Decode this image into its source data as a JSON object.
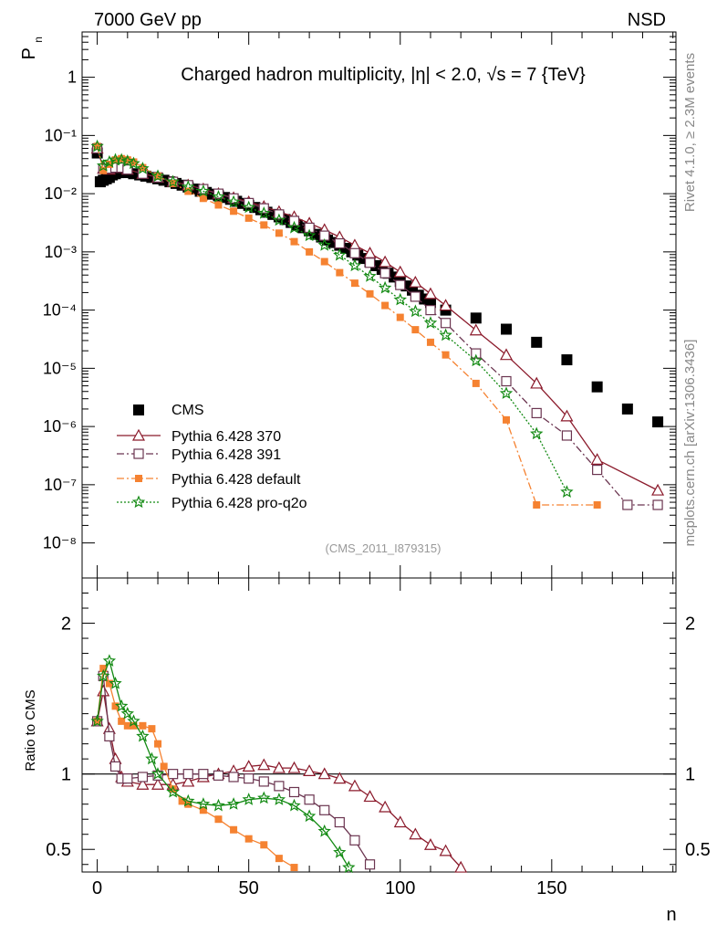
{
  "header": {
    "beam_label": "7000 GeV pp",
    "process_label": "NSD"
  },
  "side_notes": {
    "rivet": "Rivet 4.1.0, ≥ 2.3M events",
    "source": "mcplots.cern.ch [arXiv:1306.3436]"
  },
  "chart_data": [
    {
      "type": "scatter",
      "title": "Charged hadron multiplicity, |η| < 2.0, √s = 7 {TeV}",
      "xlabel": "n",
      "ylabel": "P",
      "ylabel_sub": "n",
      "yscale": "log",
      "xlim": [
        -5,
        191
      ],
      "ylim": [
        2.5e-09,
        6
      ],
      "ytick_labels": [
        "10⁻⁸",
        "10⁻⁷",
        "10⁻⁶",
        "10⁻⁵",
        "10⁻⁴",
        "10⁻³",
        "10⁻²",
        "10⁻¹",
        "1"
      ],
      "ytick_values": [
        1e-08,
        1e-07,
        1e-06,
        1e-05,
        0.0001,
        0.001,
        0.01,
        0.1,
        1
      ],
      "analysis_tag": "(CMS_2011_I879315)",
      "series": [
        {
          "name": "CMS",
          "color": "#000000",
          "marker": "square-filled",
          "line": "none",
          "x": [
            0,
            1,
            2,
            3,
            4,
            5,
            6,
            7,
            8,
            9,
            10,
            12,
            14,
            16,
            18,
            20,
            22,
            24,
            26,
            28,
            30,
            32,
            34,
            36,
            38,
            40,
            42,
            44,
            46,
            48,
            50,
            52,
            54,
            56,
            58,
            60,
            62,
            64,
            66,
            68,
            70,
            72,
            74,
            76,
            78,
            80,
            82,
            84,
            86,
            88,
            90,
            92,
            94,
            96,
            98,
            100,
            102,
            104,
            106,
            108,
            110,
            115,
            125,
            135,
            145,
            155,
            165,
            175,
            185
          ],
          "y": [
            0.05,
            0.016,
            0.017,
            0.018,
            0.019,
            0.021,
            0.022,
            0.023,
            0.024,
            0.024,
            0.023,
            0.022,
            0.021,
            0.02,
            0.019,
            0.018,
            0.017,
            0.016,
            0.015,
            0.014,
            0.013,
            0.012,
            0.011,
            0.0105,
            0.0098,
            0.0092,
            0.0086,
            0.008,
            0.0074,
            0.0068,
            0.0063,
            0.0058,
            0.0053,
            0.0048,
            0.0044,
            0.004,
            0.0036,
            0.0032,
            0.0029,
            0.0026,
            0.0023,
            0.002,
            0.0018,
            0.0016,
            0.00145,
            0.0013,
            0.00115,
            0.001,
            0.00088,
            0.00077,
            0.00067,
            0.00058,
            0.0005,
            0.00043,
            0.00037,
            0.00031,
            0.00026,
            0.00022,
            0.00018,
            0.000155,
            0.000135,
            0.0001,
            7.3e-05,
            4.7e-05,
            2.8e-05,
            1.4e-05,
            4.8e-06,
            2e-06,
            1.2e-06
          ]
        },
        {
          "name": "Pythia 6.428 370",
          "color": "#8b1a2b",
          "marker": "triangle-open",
          "line": "solid",
          "x": [
            0,
            2,
            4,
            6,
            8,
            10,
            15,
            20,
            25,
            30,
            35,
            40,
            45,
            50,
            55,
            60,
            65,
            70,
            75,
            80,
            85,
            90,
            95,
            100,
            105,
            110,
            115,
            125,
            135,
            145,
            155,
            165,
            185
          ],
          "y": [
            0.06,
            0.027,
            0.026,
            0.028,
            0.028,
            0.026,
            0.022,
            0.019,
            0.016,
            0.014,
            0.012,
            0.01,
            0.0085,
            0.0072,
            0.006,
            0.0049,
            0.004,
            0.0031,
            0.0024,
            0.0018,
            0.0013,
            0.00095,
            0.00067,
            0.00045,
            0.0003,
            0.00019,
            0.00012,
            4.5e-05,
            1.7e-05,
            5.5e-06,
            1.5e-06,
            2.7e-07,
            8e-08
          ]
        },
        {
          "name": "Pythia 6.428 391",
          "color": "#6b3550",
          "marker": "square-open",
          "line": "dashdot",
          "x": [
            0,
            2,
            4,
            6,
            8,
            10,
            15,
            20,
            25,
            30,
            35,
            40,
            45,
            50,
            55,
            60,
            65,
            70,
            75,
            80,
            85,
            90,
            95,
            100,
            105,
            110,
            115,
            125,
            135,
            145,
            155,
            165,
            175,
            185
          ],
          "y": [
            0.06,
            0.027,
            0.027,
            0.028,
            0.028,
            0.026,
            0.022,
            0.019,
            0.016,
            0.014,
            0.012,
            0.01,
            0.0083,
            0.0069,
            0.0056,
            0.0044,
            0.0034,
            0.0026,
            0.0019,
            0.0014,
            0.00095,
            0.00065,
            0.00043,
            0.00027,
            0.00017,
            0.0001,
            6e-05,
            1.8e-05,
            6e-06,
            1.7e-06,
            7e-07,
            1.8e-07,
            4.5e-08,
            4.5e-08
          ]
        },
        {
          "name": "Pythia 6.428 default",
          "color": "#f58231",
          "marker": "square-filled-small",
          "line": "dashdot",
          "x": [
            0,
            2,
            4,
            6,
            8,
            10,
            12,
            15,
            20,
            25,
            30,
            35,
            40,
            45,
            50,
            55,
            60,
            65,
            70,
            75,
            80,
            85,
            90,
            95,
            100,
            105,
            110,
            115,
            125,
            135,
            145,
            165
          ],
          "y": [
            0.065,
            0.025,
            0.032,
            0.038,
            0.04,
            0.038,
            0.035,
            0.028,
            0.02,
            0.015,
            0.011,
            0.0083,
            0.0064,
            0.005,
            0.0038,
            0.0029,
            0.0021,
            0.0015,
            0.001,
            0.00068,
            0.00044,
            0.00029,
            0.00019,
            0.00012,
            7.5e-05,
            4.6e-05,
            2.8e-05,
            1.7e-05,
            5.5e-06,
            1.3e-06,
            4.5e-08,
            4.5e-08
          ]
        },
        {
          "name": "Pythia 6.428 pro-q2o",
          "color": "#138a13",
          "marker": "star-open",
          "line": "dotted",
          "x": [
            0,
            2,
            4,
            6,
            8,
            10,
            12,
            15,
            20,
            25,
            30,
            35,
            40,
            45,
            50,
            55,
            60,
            65,
            70,
            75,
            80,
            85,
            90,
            95,
            100,
            105,
            110,
            115,
            125,
            135,
            145,
            155
          ],
          "y": [
            0.065,
            0.03,
            0.035,
            0.038,
            0.038,
            0.036,
            0.033,
            0.027,
            0.02,
            0.016,
            0.013,
            0.011,
            0.0088,
            0.0072,
            0.0058,
            0.0046,
            0.0035,
            0.0026,
            0.0019,
            0.0013,
            0.00088,
            0.00058,
            0.00038,
            0.00024,
            0.00015,
            9.5e-05,
            6e-05,
            3.7e-05,
            1.35e-05,
            3.7e-06,
            7.5e-07,
            7.5e-08
          ]
        }
      ]
    },
    {
      "type": "line",
      "ylabel": "Ratio to CMS",
      "xlabel": "n",
      "xlim": [
        -5,
        191
      ],
      "ylim": [
        0.35,
        2.3
      ],
      "xtick_values": [
        0,
        50,
        100,
        150
      ],
      "xtick_labels": [
        "0",
        "50",
        "100",
        "150"
      ],
      "ytick_values": [
        0.5,
        1,
        2
      ],
      "ytick_labels": [
        "0.5",
        "1",
        "2"
      ],
      "reference_line": 1,
      "series": [
        {
          "name": "Pythia 6.428 370",
          "color": "#8b1a2b",
          "marker": "triangle-open",
          "x": [
            0,
            2,
            4,
            6,
            8,
            10,
            15,
            20,
            25,
            30,
            35,
            40,
            45,
            50,
            55,
            60,
            65,
            70,
            75,
            80,
            85,
            90,
            95,
            100,
            105,
            110,
            115,
            120
          ],
          "y": [
            1.35,
            1.55,
            1.3,
            1.1,
            0.98,
            0.95,
            0.93,
            0.93,
            0.93,
            0.95,
            0.98,
            1.0,
            1.02,
            1.05,
            1.06,
            1.04,
            1.04,
            1.02,
            1.0,
            0.97,
            0.92,
            0.85,
            0.78,
            0.68,
            0.6,
            0.53,
            0.49,
            0.38
          ]
        },
        {
          "name": "Pythia 6.428 391",
          "color": "#6b3550",
          "marker": "square-open",
          "x": [
            0,
            2,
            4,
            6,
            8,
            10,
            15,
            20,
            25,
            30,
            35,
            40,
            45,
            50,
            55,
            60,
            65,
            70,
            75,
            80,
            85,
            90
          ],
          "y": [
            1.35,
            1.65,
            1.25,
            1.05,
            0.97,
            0.97,
            0.98,
            0.99,
            1.0,
            1.0,
            1.0,
            0.99,
            0.98,
            0.97,
            0.95,
            0.92,
            0.88,
            0.83,
            0.76,
            0.68,
            0.56,
            0.4
          ]
        },
        {
          "name": "Pythia 6.428 default",
          "color": "#f58231",
          "marker": "square-filled-small",
          "x": [
            0,
            2,
            4,
            6,
            8,
            10,
            12,
            15,
            18,
            20,
            22,
            25,
            28,
            30,
            35,
            40,
            45,
            50,
            55,
            60,
            65
          ],
          "y": [
            1.35,
            1.7,
            1.6,
            1.45,
            1.35,
            1.32,
            1.32,
            1.32,
            1.3,
            1.2,
            1.05,
            0.9,
            0.82,
            0.8,
            0.76,
            0.7,
            0.63,
            0.57,
            0.53,
            0.44,
            0.38
          ]
        },
        {
          "name": "Pythia 6.428 pro-q2o",
          "color": "#138a13",
          "marker": "star-open",
          "x": [
            0,
            2,
            4,
            6,
            8,
            10,
            12,
            15,
            18,
            20,
            25,
            30,
            35,
            40,
            45,
            50,
            55,
            60,
            65,
            70,
            75,
            80,
            83
          ],
          "y": [
            1.35,
            1.65,
            1.75,
            1.6,
            1.45,
            1.4,
            1.35,
            1.25,
            1.1,
            1.0,
            0.88,
            0.82,
            0.8,
            0.79,
            0.8,
            0.83,
            0.84,
            0.83,
            0.79,
            0.72,
            0.62,
            0.48,
            0.38
          ]
        }
      ]
    }
  ]
}
